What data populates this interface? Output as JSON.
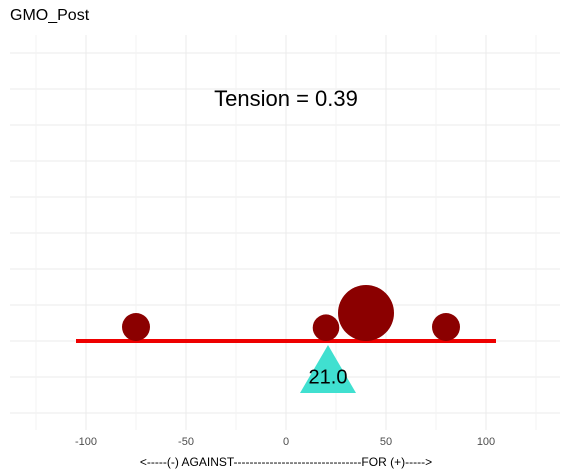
{
  "chart_data": {
    "type": "balance",
    "title": "GMO_Post",
    "annotation": "Tension = 0.39",
    "x_label": "<-----(-) AGAINST--------------------------------FOR (+)----->",
    "x": [
      -75,
      20,
      40,
      80
    ],
    "sizes": [
      1,
      0.9,
      4,
      1
    ],
    "color": "#8b0000",
    "beam": [
      -105,
      105
    ],
    "beam_color": "#ee0000",
    "fulcrum": {
      "value": 21,
      "value_label": "21.0",
      "color": "#40e0d0"
    },
    "xlim": [
      -138,
      137
    ],
    "xticks": [
      -100,
      -50,
      0,
      50,
      100
    ],
    "grid": true
  }
}
